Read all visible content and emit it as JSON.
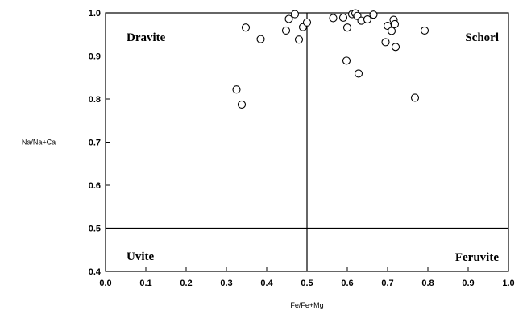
{
  "chart_data": {
    "type": "scatter",
    "title": "",
    "xlabel": "Fe/Fe+Mg",
    "ylabel": "Na/Na+Ca",
    "xlim": [
      0.0,
      1.0
    ],
    "ylim": [
      0.4,
      1.0
    ],
    "x_ticks": [
      "0.0",
      "0.1",
      "0.2",
      "0.3",
      "0.4",
      "0.5",
      "0.6",
      "0.7",
      "0.8",
      "0.9",
      "1.0"
    ],
    "y_ticks": [
      "0.4",
      "0.5",
      "0.6",
      "0.7",
      "0.8",
      "0.9",
      "1.0"
    ],
    "divider_x": 0.5,
    "divider_y": 0.5,
    "region_labels": {
      "top_left": "Dravite",
      "top_right": "Schorl",
      "bottom_left": "Uvite",
      "bottom_right": "Feruvite"
    },
    "marker": "open-circle",
    "grid": false,
    "points": [
      {
        "x": 0.325,
        "y": 0.822
      },
      {
        "x": 0.338,
        "y": 0.787
      },
      {
        "x": 0.348,
        "y": 0.966
      },
      {
        "x": 0.385,
        "y": 0.939
      },
      {
        "x": 0.448,
        "y": 0.959
      },
      {
        "x": 0.455,
        "y": 0.986
      },
      {
        "x": 0.47,
        "y": 0.997
      },
      {
        "x": 0.48,
        "y": 0.938
      },
      {
        "x": 0.49,
        "y": 0.967
      },
      {
        "x": 0.5,
        "y": 0.978
      },
      {
        "x": 0.565,
        "y": 0.988
      },
      {
        "x": 0.59,
        "y": 0.989
      },
      {
        "x": 0.598,
        "y": 0.889
      },
      {
        "x": 0.6,
        "y": 0.966
      },
      {
        "x": 0.612,
        "y": 0.997
      },
      {
        "x": 0.62,
        "y": 0.999
      },
      {
        "x": 0.625,
        "y": 0.993
      },
      {
        "x": 0.628,
        "y": 0.859
      },
      {
        "x": 0.635,
        "y": 0.982
      },
      {
        "x": 0.65,
        "y": 0.985
      },
      {
        "x": 0.665,
        "y": 0.996
      },
      {
        "x": 0.695,
        "y": 0.932
      },
      {
        "x": 0.7,
        "y": 0.97
      },
      {
        "x": 0.71,
        "y": 0.958
      },
      {
        "x": 0.715,
        "y": 0.984
      },
      {
        "x": 0.718,
        "y": 0.974
      },
      {
        "x": 0.72,
        "y": 0.921
      },
      {
        "x": 0.768,
        "y": 0.803
      },
      {
        "x": 0.792,
        "y": 0.959
      }
    ]
  }
}
